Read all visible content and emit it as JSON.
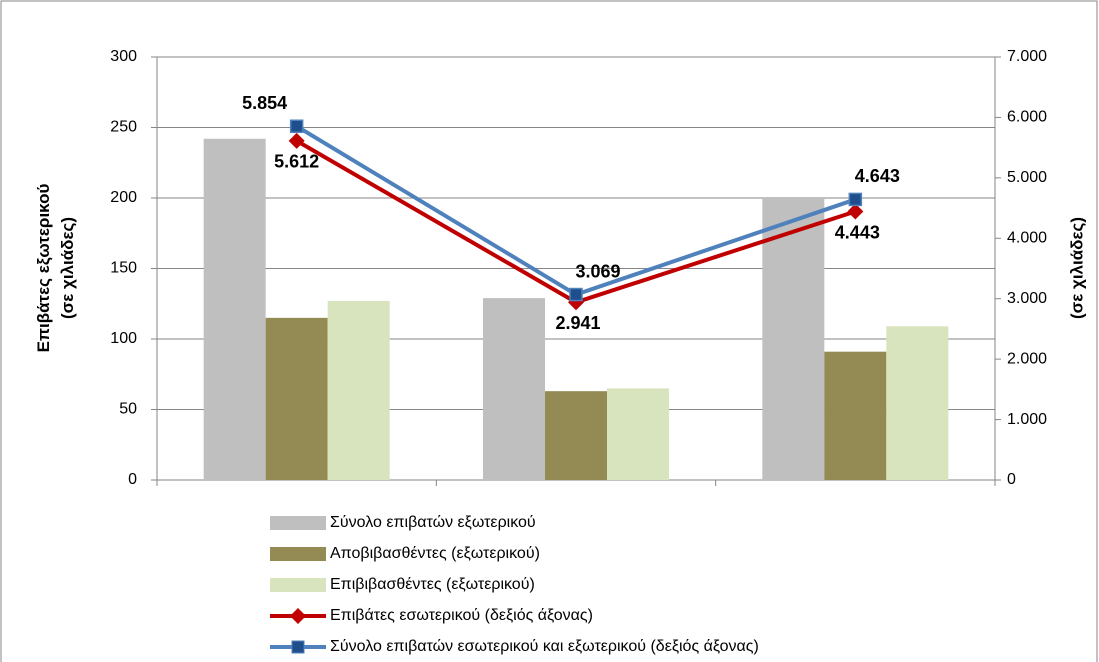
{
  "chart_data": {
    "type": "bar",
    "categories": [
      null,
      null,
      null
    ],
    "ylabel": [
      "Επιβάτες εξωτερικού",
      "(σε χιλιάδες)"
    ],
    "y2label": "(σε χιλιάδες)",
    "ylim": [
      0,
      300
    ],
    "yticks": [
      0,
      50,
      100,
      150,
      200,
      250,
      300
    ],
    "y2lim": [
      0,
      7000
    ],
    "y2ticks": [
      0,
      {
        "value": 1000,
        "label": "1.000"
      },
      {
        "value": 2000,
        "label": "2.000"
      },
      {
        "value": 3000,
        "label": "3.000"
      },
      {
        "value": 4000,
        "label": "4.000"
      },
      {
        "value": 5000,
        "label": "5.000"
      },
      {
        "value": 6000,
        "label": "6.000"
      },
      {
        "value": 7000,
        "label": "7.000"
      }
    ],
    "grid": true,
    "legend": "bottom",
    "series": [
      {
        "name": "Σύνολο επιβατών εξωτερικού",
        "type": "bar",
        "color": "#bfbfbf",
        "values": [
          242,
          129,
          200
        ]
      },
      {
        "name": "Αποβιβασθέντες (εξωτερικού)",
        "type": "bar",
        "color": "#948a54",
        "values": [
          115,
          63,
          91
        ]
      },
      {
        "name": "Επιβιβασθέντες (εξωτερικού)",
        "type": "bar",
        "color": "#d7e4bd",
        "values": [
          127,
          65,
          109
        ]
      },
      {
        "name": "Επιβάτες εσωτερικού (δεξιός άξονας)",
        "type": "line",
        "axis": "y2",
        "color": "#c00000",
        "marker": "diamond",
        "values": [
          5612,
          2941,
          4443
        ],
        "value_labels": [
          "5.612",
          "2.941",
          "4.443"
        ]
      },
      {
        "name": "Σύνολο επιβατών εσωτερικού και εξωτερικού (δεξιός άξονας)",
        "type": "line",
        "axis": "y2",
        "color": "#4f81bd",
        "marker": "square",
        "values": [
          5854,
          3069,
          4643
        ],
        "value_labels": [
          "5.854",
          "3.069",
          "4.643"
        ]
      }
    ]
  }
}
